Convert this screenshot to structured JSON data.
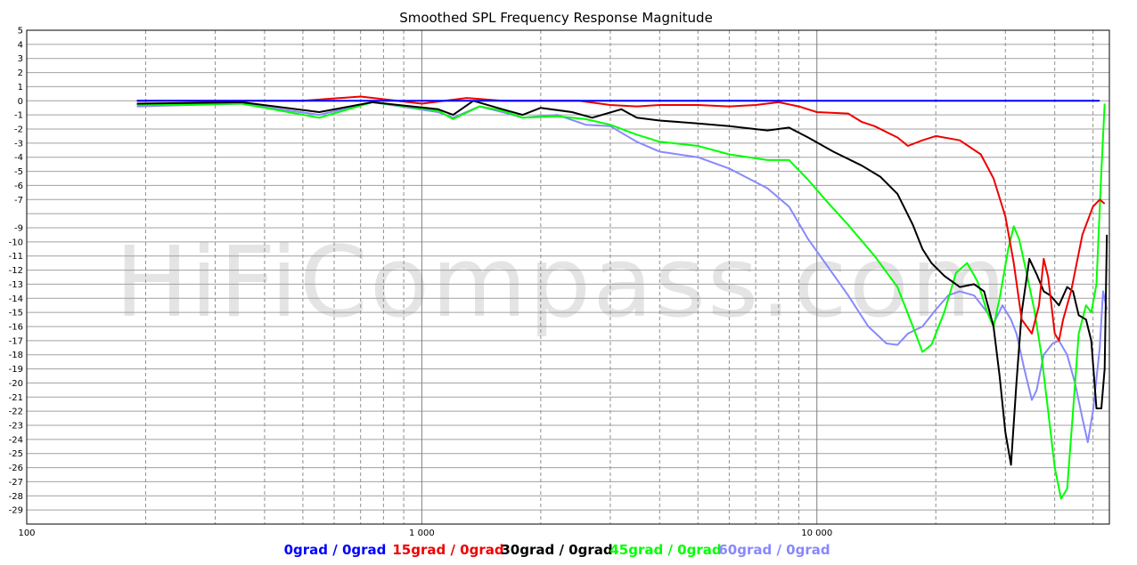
{
  "chart_data": {
    "type": "line",
    "title": "Smoothed SPL Frequency Response Magnitude",
    "watermark": "HiFiCompass.com",
    "xscale": "log",
    "xlim": [
      100,
      55000
    ],
    "ylim": [
      -30,
      5
    ],
    "grid": true,
    "x_tick_labels": [
      {
        "value": 100,
        "label": "100"
      },
      {
        "value": 1000,
        "label": "1 000"
      },
      {
        "value": 10000,
        "label": "10 000"
      }
    ],
    "y_ticks": [
      5,
      4,
      3,
      2,
      1,
      0,
      -1,
      -2,
      -3,
      -4,
      -5,
      -6,
      -7,
      -9,
      -10,
      -11,
      -12,
      -13,
      -14,
      -15,
      -16,
      -17,
      -18,
      -19,
      -20,
      -21,
      -22,
      -23,
      -24,
      -25,
      -26,
      -27,
      -28,
      -29
    ],
    "series": [
      {
        "name": "0grad / 0grad",
        "color": "#0000ff",
        "points": [
          [
            190,
            0
          ],
          [
            1000,
            0
          ],
          [
            10000,
            0
          ],
          [
            52000,
            0
          ]
        ]
      },
      {
        "name": "15grad / 0grad",
        "color": "#ee0000",
        "points": [
          [
            190,
            0
          ],
          [
            500,
            0
          ],
          [
            700,
            0.3
          ],
          [
            1000,
            -0.2
          ],
          [
            1300,
            0.2
          ],
          [
            1600,
            0
          ],
          [
            2500,
            0
          ],
          [
            3000,
            -0.3
          ],
          [
            3500,
            -0.4
          ],
          [
            4000,
            -0.3
          ],
          [
            5000,
            -0.3
          ],
          [
            6000,
            -0.4
          ],
          [
            7000,
            -0.3
          ],
          [
            8000,
            -0.1
          ],
          [
            9000,
            -0.4
          ],
          [
            10000,
            -0.8
          ],
          [
            12000,
            -0.9
          ],
          [
            13000,
            -1.5
          ],
          [
            14000,
            -1.8
          ],
          [
            16000,
            -2.6
          ],
          [
            17000,
            -3.2
          ],
          [
            18500,
            -2.8
          ],
          [
            20000,
            -2.5
          ],
          [
            23000,
            -2.8
          ],
          [
            26000,
            -3.8
          ],
          [
            28000,
            -5.5
          ],
          [
            30000,
            -8.2
          ],
          [
            31500,
            -11.5
          ],
          [
            33000,
            -15.5
          ],
          [
            35000,
            -16.5
          ],
          [
            36500,
            -14.5
          ],
          [
            37500,
            -11.2
          ],
          [
            38500,
            -12.5
          ],
          [
            40000,
            -16.5
          ],
          [
            41000,
            -17
          ],
          [
            42000,
            -15.5
          ],
          [
            44000,
            -13.5
          ],
          [
            47000,
            -9.5
          ],
          [
            50000,
            -7.5
          ],
          [
            52000,
            -7
          ],
          [
            53500,
            -7.3
          ]
        ]
      },
      {
        "name": "30grad / 0grad",
        "color": "#000000",
        "points": [
          [
            190,
            -0.2
          ],
          [
            350,
            -0.1
          ],
          [
            550,
            -0.8
          ],
          [
            750,
            -0.1
          ],
          [
            1100,
            -0.6
          ],
          [
            1200,
            -1
          ],
          [
            1350,
            0
          ],
          [
            1600,
            -0.6
          ],
          [
            1800,
            -1
          ],
          [
            2000,
            -0.5
          ],
          [
            2400,
            -0.8
          ],
          [
            2700,
            -1.2
          ],
          [
            3200,
            -0.6
          ],
          [
            3500,
            -1.2
          ],
          [
            4000,
            -1.4
          ],
          [
            5000,
            -1.6
          ],
          [
            6000,
            -1.8
          ],
          [
            7500,
            -2.1
          ],
          [
            8500,
            -1.9
          ],
          [
            9500,
            -2.6
          ],
          [
            11000,
            -3.6
          ],
          [
            13000,
            -4.6
          ],
          [
            14500,
            -5.4
          ],
          [
            16000,
            -6.6
          ],
          [
            17500,
            -8.8
          ],
          [
            18500,
            -10.5
          ],
          [
            19500,
            -11.5
          ],
          [
            21000,
            -12.4
          ],
          [
            23000,
            -13.2
          ],
          [
            25000,
            -13
          ],
          [
            26500,
            -13.5
          ],
          [
            28000,
            -16
          ],
          [
            29000,
            -19.5
          ],
          [
            30000,
            -23.5
          ],
          [
            31000,
            -25.8
          ],
          [
            32000,
            -20
          ],
          [
            33000,
            -15
          ],
          [
            34500,
            -11.2
          ],
          [
            36000,
            -12.3
          ],
          [
            37500,
            -13.5
          ],
          [
            39000,
            -13.8
          ],
          [
            41000,
            -14.5
          ],
          [
            43000,
            -13.2
          ],
          [
            44500,
            -13.5
          ],
          [
            46000,
            -15.2
          ],
          [
            48000,
            -15.5
          ],
          [
            49500,
            -17
          ],
          [
            51000,
            -21.8
          ],
          [
            52500,
            -21.8
          ],
          [
            53500,
            -19
          ],
          [
            54200,
            -9.5
          ]
        ]
      },
      {
        "name": "45grad / 0grad",
        "color": "#00ff00",
        "points": [
          [
            190,
            -0.3
          ],
          [
            350,
            -0.2
          ],
          [
            550,
            -1.2
          ],
          [
            750,
            -0.1
          ],
          [
            1100,
            -0.7
          ],
          [
            1200,
            -1.3
          ],
          [
            1400,
            -0.4
          ],
          [
            1600,
            -0.7
          ],
          [
            1800,
            -1.2
          ],
          [
            2200,
            -1.1
          ],
          [
            2600,
            -1.3
          ],
          [
            3000,
            -1.7
          ],
          [
            3500,
            -2.4
          ],
          [
            4000,
            -2.9
          ],
          [
            5000,
            -3.2
          ],
          [
            6000,
            -3.8
          ],
          [
            7500,
            -4.2
          ],
          [
            8500,
            -4.2
          ],
          [
            9500,
            -5.6
          ],
          [
            10500,
            -7
          ],
          [
            12000,
            -8.8
          ],
          [
            14000,
            -11
          ],
          [
            16000,
            -13.2
          ],
          [
            17500,
            -16
          ],
          [
            18500,
            -17.8
          ],
          [
            19500,
            -17.3
          ],
          [
            21000,
            -15
          ],
          [
            22500,
            -12.2
          ],
          [
            24000,
            -11.5
          ],
          [
            25500,
            -12.8
          ],
          [
            27000,
            -15
          ],
          [
            28000,
            -16
          ],
          [
            29000,
            -14
          ],
          [
            30500,
            -10.5
          ],
          [
            31500,
            -8.9
          ],
          [
            32500,
            -9.8
          ],
          [
            34000,
            -12.3
          ],
          [
            35500,
            -14.8
          ],
          [
            37000,
            -18
          ],
          [
            38500,
            -22
          ],
          [
            40000,
            -26
          ],
          [
            41500,
            -28.2
          ],
          [
            43000,
            -27.5
          ],
          [
            44500,
            -22
          ],
          [
            46000,
            -16.5
          ],
          [
            48000,
            -14.5
          ],
          [
            49500,
            -15
          ],
          [
            51000,
            -13
          ],
          [
            52500,
            -5
          ],
          [
            53500,
            -0.2
          ]
        ]
      },
      {
        "name": "60grad / 0grad",
        "color": "#8888ff",
        "points": [
          [
            190,
            -0.4
          ],
          [
            350,
            -0.2
          ],
          [
            550,
            -1
          ],
          [
            750,
            -0.1
          ],
          [
            1100,
            -0.8
          ],
          [
            1200,
            -1.2
          ],
          [
            1400,
            -0.4
          ],
          [
            1600,
            -0.8
          ],
          [
            1800,
            -1.2
          ],
          [
            2200,
            -1
          ],
          [
            2600,
            -1.7
          ],
          [
            3000,
            -1.8
          ],
          [
            3500,
            -2.9
          ],
          [
            4000,
            -3.6
          ],
          [
            5000,
            -4
          ],
          [
            6000,
            -4.8
          ],
          [
            7500,
            -6.2
          ],
          [
            8500,
            -7.5
          ],
          [
            9500,
            -9.8
          ],
          [
            10500,
            -11.5
          ],
          [
            12000,
            -13.8
          ],
          [
            13500,
            -16
          ],
          [
            15000,
            -17.2
          ],
          [
            16000,
            -17.3
          ],
          [
            17000,
            -16.5
          ],
          [
            18500,
            -16
          ],
          [
            20000,
            -14.8
          ],
          [
            21500,
            -13.8
          ],
          [
            23000,
            -13.5
          ],
          [
            25000,
            -13.8
          ],
          [
            27000,
            -15
          ],
          [
            28000,
            -15.8
          ],
          [
            29500,
            -14.5
          ],
          [
            31000,
            -15.5
          ],
          [
            32000,
            -16.5
          ],
          [
            33500,
            -19
          ],
          [
            35000,
            -21.2
          ],
          [
            36000,
            -20.5
          ],
          [
            37500,
            -18
          ],
          [
            39500,
            -17.2
          ],
          [
            41000,
            -17
          ],
          [
            43000,
            -18
          ],
          [
            45000,
            -20
          ],
          [
            47000,
            -22.5
          ],
          [
            48500,
            -24.2
          ],
          [
            50000,
            -22
          ],
          [
            52000,
            -17.5
          ],
          [
            53000,
            -13.5
          ],
          [
            54200,
            -14.8
          ]
        ]
      }
    ]
  }
}
